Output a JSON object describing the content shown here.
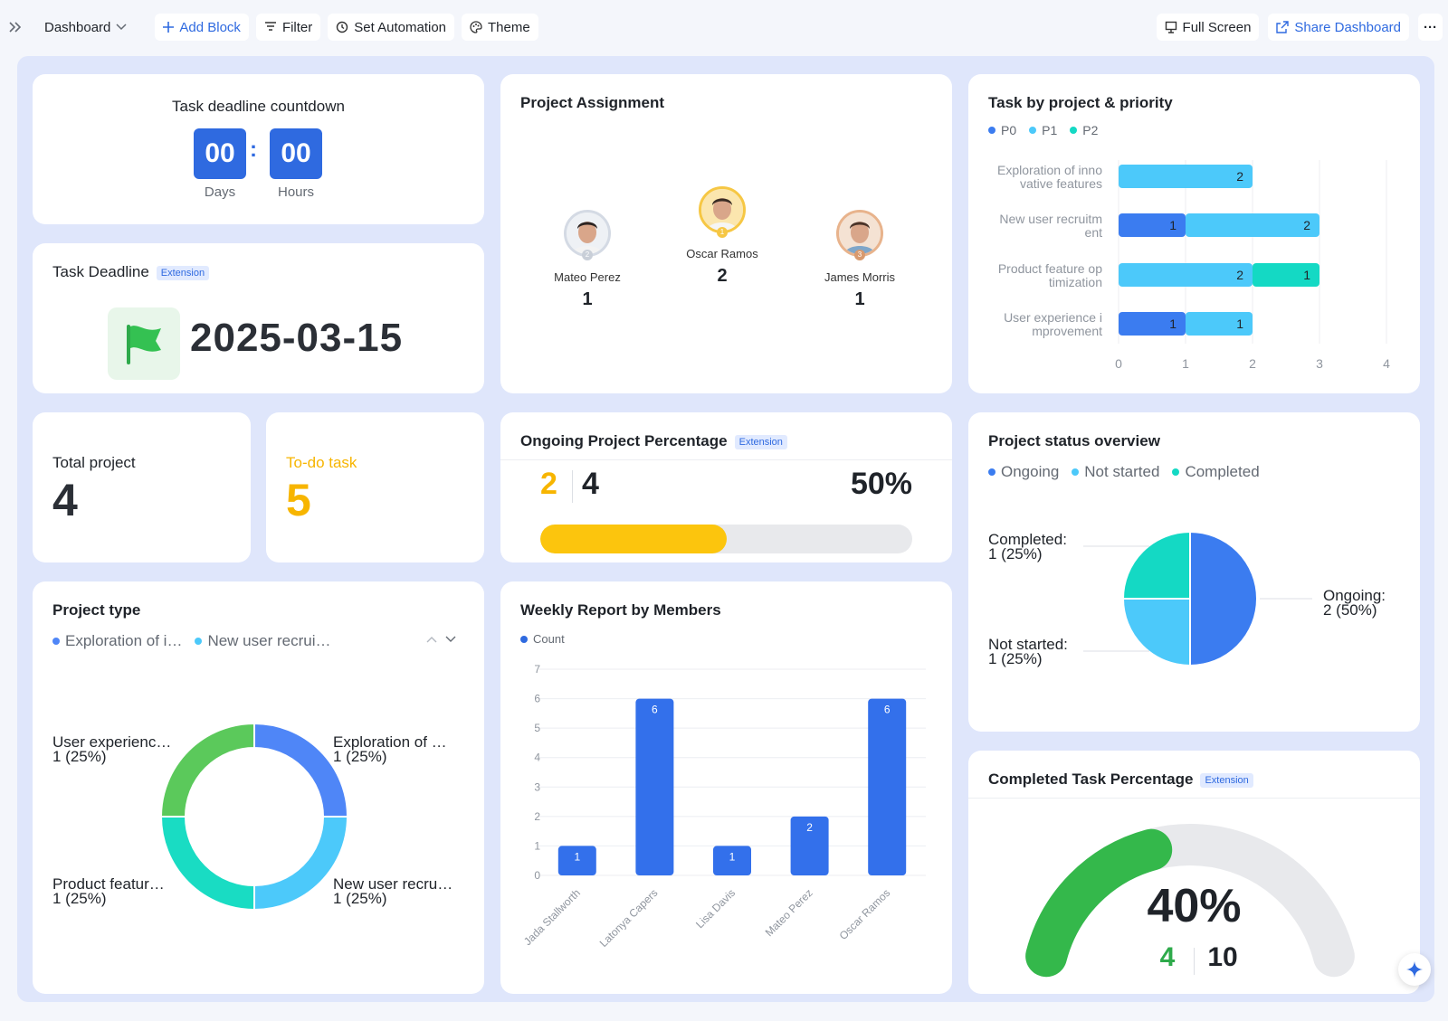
{
  "toolbar": {
    "dashboard_label": "Dashboard",
    "add_block": "Add Block",
    "filter": "Filter",
    "set_automation": "Set Automation",
    "theme": "Theme",
    "full_screen": "Full Screen",
    "share_dashboard": "Share Dashboard",
    "more": "···"
  },
  "countdown": {
    "title": "Task deadline countdown",
    "days_value": "00",
    "hours_value": "00",
    "separator": ":",
    "days_label": "Days",
    "hours_label": "Hours"
  },
  "deadline": {
    "title": "Task Deadline",
    "badge": "Extension",
    "date": "2025-03-15"
  },
  "assignment": {
    "title": "Project Assignment",
    "people": [
      {
        "name": "Mateo Perez",
        "count": "1",
        "rank": "2"
      },
      {
        "name": "Oscar Ramos",
        "count": "2",
        "rank": "1"
      },
      {
        "name": "James Morris",
        "count": "1",
        "rank": "3"
      }
    ]
  },
  "task_priority": {
    "title": "Task by project & priority",
    "legend": [
      "P0",
      "P1",
      "P2"
    ],
    "colors": {
      "P0": "#3b7cf0",
      "P1": "#4cc9fa",
      "P2": "#14d9c4"
    },
    "categories": [
      "Exploration of inno vative features",
      "New user recruitm ent",
      "Product feature op timization",
      "User experience i mprovement"
    ],
    "category_lines": [
      [
        "Exploration of inno",
        "vative features"
      ],
      [
        "New user recruitm",
        "ent"
      ],
      [
        "Product feature op",
        "timization"
      ],
      [
        "User experience i",
        "mprovement"
      ]
    ],
    "ticks": [
      "0",
      "1",
      "2",
      "3",
      "4"
    ]
  },
  "total_project": {
    "label": "Total project",
    "value": "4"
  },
  "todo_task": {
    "label": "To-do task",
    "value": "5"
  },
  "ongoing_pct": {
    "title": "Ongoing Project Percentage",
    "badge": "Extension",
    "current": "2",
    "total": "4",
    "percent": "50%",
    "progress": 0.5
  },
  "status_overview": {
    "title": "Project status overview",
    "legend": [
      "Ongoing",
      "Not started",
      "Completed"
    ],
    "labels": {
      "completed": [
        "Completed:",
        "1 (25%)"
      ],
      "not_started": [
        "Not started:",
        "1 (25%)"
      ],
      "ongoing": [
        "Ongoing:",
        "2 (50%)"
      ]
    }
  },
  "project_type": {
    "title": "Project type",
    "legend": [
      "Exploration of i…",
      "New user recrui…"
    ],
    "labels": {
      "tl": [
        "User experienc…",
        "1 (25%)"
      ],
      "tr": [
        "Exploration of …",
        "1 (25%)"
      ],
      "bl": [
        "Product featur…",
        "1 (25%)"
      ],
      "br": [
        "New user recru…",
        "1 (25%)"
      ]
    }
  },
  "weekly": {
    "title": "Weekly Report by Members",
    "legend": "Count",
    "yticks": [
      "0",
      "1",
      "2",
      "3",
      "4",
      "5",
      "6",
      "7"
    ]
  },
  "completed_pct": {
    "title": "Completed Task Percentage",
    "badge": "Extension",
    "percent": "40%",
    "done": "4",
    "total": "10",
    "progress": 0.4
  },
  "chart_data": [
    {
      "type": "bar",
      "title": "Task by project & priority",
      "orientation": "horizontal",
      "stacked": true,
      "categories": [
        "Exploration of innovative features",
        "New user recruitment",
        "Product feature optimization",
        "User experience improvement"
      ],
      "series": [
        {
          "name": "P0",
          "values": [
            0,
            1,
            0,
            1
          ]
        },
        {
          "name": "P1",
          "values": [
            2,
            2,
            2,
            1
          ]
        },
        {
          "name": "P2",
          "values": [
            0,
            0,
            1,
            0
          ]
        }
      ],
      "xlim": [
        0,
        4
      ],
      "grid": true,
      "legend": "top-left"
    },
    {
      "type": "pie",
      "title": "Project status overview",
      "categories": [
        "Ongoing",
        "Not started",
        "Completed"
      ],
      "values": [
        2,
        1,
        1
      ],
      "legend": "top-left"
    },
    {
      "type": "pie",
      "title": "Project type",
      "categories": [
        "Exploration of innovative features",
        "New user recruitment",
        "Product feature optimization",
        "User experience improvement"
      ],
      "values": [
        1,
        1,
        1,
        1
      ],
      "legend": "top-left"
    },
    {
      "type": "bar",
      "title": "Weekly Report by Members",
      "categories": [
        "Jada Stallworth",
        "Latonya Capers",
        "Lisa Davis",
        "Mateo Perez",
        "Oscar Ramos"
      ],
      "series": [
        {
          "name": "Count",
          "values": [
            1,
            6,
            1,
            2,
            6
          ]
        }
      ],
      "ylim": [
        0,
        7
      ],
      "grid": true,
      "legend": "top-left"
    }
  ]
}
